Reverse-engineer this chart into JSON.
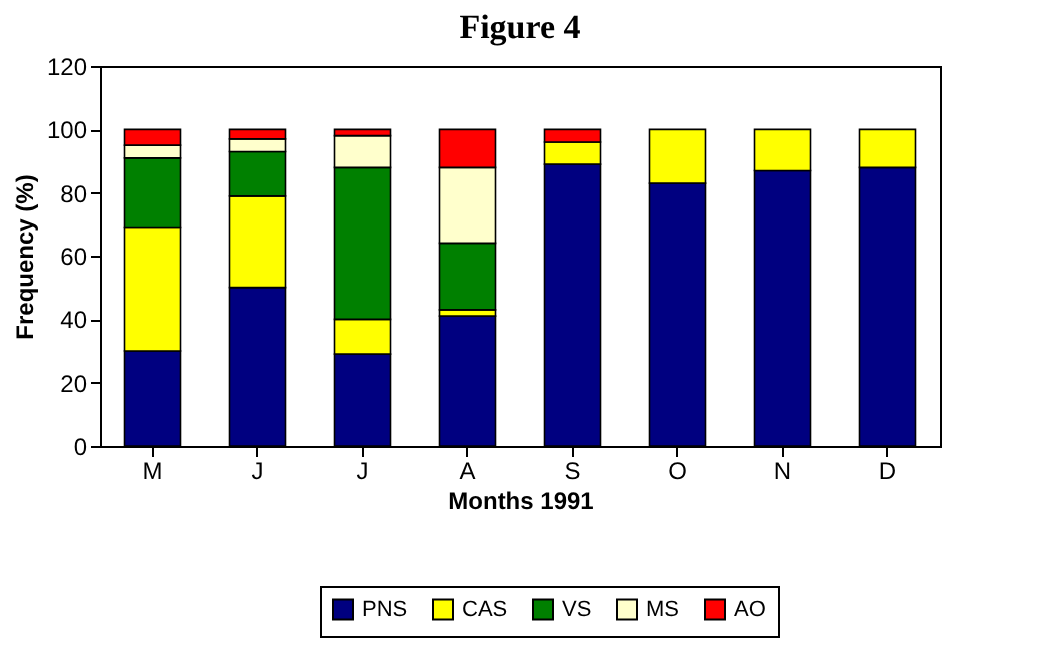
{
  "chart_data": {
    "type": "bar",
    "stacked": true,
    "title": "Figure 4",
    "xlabel": "Months 1991",
    "ylabel": "Frequency (%)",
    "categories": [
      "M",
      "J",
      "J",
      "A",
      "S",
      "O",
      "N",
      "D"
    ],
    "series": [
      {
        "name": "PNS",
        "color": "#000080",
        "values": [
          30,
          50,
          29,
          41,
          89,
          83,
          87,
          88
        ]
      },
      {
        "name": "CAS",
        "color": "#ffff00",
        "values": [
          39,
          29,
          11,
          2,
          7,
          17,
          13,
          12
        ]
      },
      {
        "name": "VS",
        "color": "#008000",
        "values": [
          22,
          14,
          48,
          21,
          null,
          null,
          null,
          null
        ]
      },
      {
        "name": "MS",
        "color": "#ffffcc",
        "values": [
          4,
          4,
          10,
          24,
          null,
          null,
          null,
          null
        ]
      },
      {
        "name": "AO",
        "color": "#ff0000",
        "values": [
          5,
          3,
          2,
          12,
          4,
          null,
          null,
          null
        ]
      }
    ],
    "ylim": [
      0,
      120
    ],
    "yticks": [
      0,
      20,
      40,
      60,
      80,
      100,
      120
    ],
    "grid": false,
    "legend": "bottom"
  }
}
